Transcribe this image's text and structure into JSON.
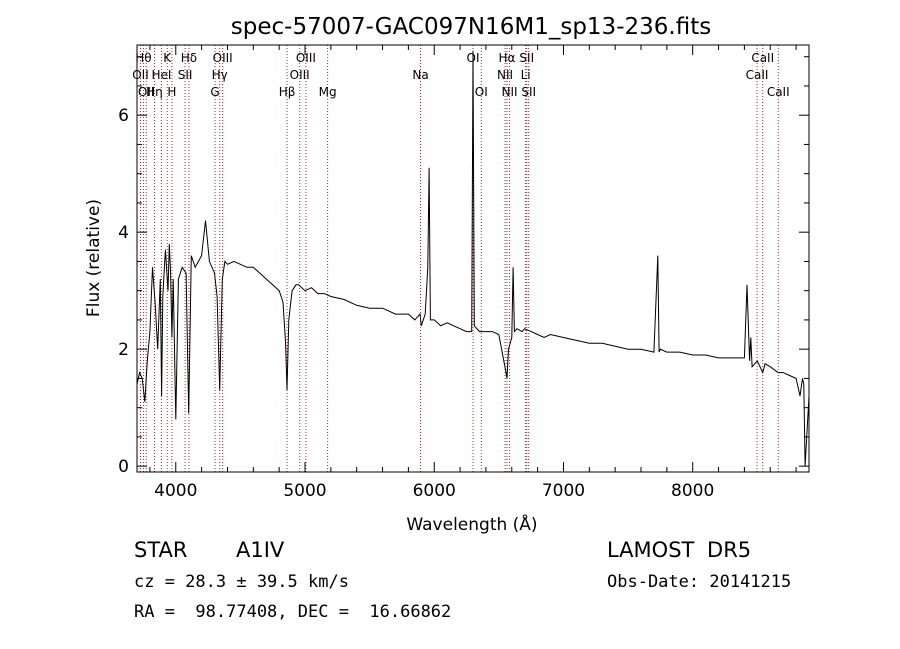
{
  "chart_data": {
    "type": "line",
    "title": "spec-57007-GAC097N16M1_sp13-236.fits",
    "xlabel": "Wavelength (Å)",
    "ylabel": "Flux (relative)",
    "xlim": [
      3700,
      8900
    ],
    "ylim": [
      -0.1,
      7.2
    ],
    "xticks": [
      4000,
      5000,
      6000,
      7000,
      8000
    ],
    "yticks": [
      0,
      2,
      4,
      6
    ],
    "grid": false,
    "legend": "none",
    "series": [
      {
        "x": [
          3700,
          3720,
          3740,
          3760,
          3780,
          3800,
          3820,
          3840,
          3860,
          3880,
          3890,
          3900,
          3920,
          3940,
          3950,
          3960,
          3970,
          3980,
          4000,
          4020,
          4050,
          4080,
          4100,
          4120,
          4150,
          4200,
          4230,
          4260,
          4300,
          4320,
          4340,
          4360,
          4380,
          4400,
          4450,
          4500,
          4550,
          4600,
          4650,
          4700,
          4750,
          4800,
          4830,
          4850,
          4861,
          4875,
          4900,
          4930,
          4950,
          5000,
          5050,
          5100,
          5150,
          5200,
          5300,
          5400,
          5500,
          5600,
          5700,
          5800,
          5850,
          5890,
          5900,
          5930,
          5950,
          5960,
          5970,
          6000,
          6050,
          6100,
          6150,
          6200,
          6250,
          6290,
          6300,
          6310,
          6350,
          6400,
          6450,
          6500,
          6530,
          6555,
          6563,
          6575,
          6600,
          6610,
          6620,
          6640,
          6680,
          6700,
          6750,
          6800,
          6850,
          6900,
          7000,
          7100,
          7200,
          7300,
          7400,
          7500,
          7600,
          7700,
          7730,
          7740,
          7750,
          7800,
          7900,
          8000,
          8100,
          8200,
          8300,
          8400,
          8420,
          8440,
          8450,
          8460,
          8500,
          8542,
          8560,
          8600,
          8662,
          8700,
          8750,
          8800,
          8830,
          8850,
          8860,
          8870,
          8900
        ],
        "y": [
          1.4,
          1.6,
          1.5,
          1.1,
          1.8,
          2.3,
          3.4,
          2.8,
          2.0,
          3.2,
          1.2,
          2.9,
          3.7,
          3.0,
          3.8,
          3.3,
          2.2,
          3.2,
          0.8,
          3.2,
          3.4,
          3.3,
          0.9,
          3.6,
          3.4,
          3.6,
          4.2,
          3.5,
          3.3,
          2.9,
          1.3,
          3.2,
          3.5,
          3.45,
          3.5,
          3.45,
          3.4,
          3.4,
          3.3,
          3.2,
          3.1,
          3.0,
          2.8,
          2.1,
          1.3,
          2.5,
          3.0,
          3.1,
          3.1,
          3.0,
          3.05,
          2.95,
          2.95,
          2.9,
          2.85,
          2.75,
          2.7,
          2.7,
          2.6,
          2.6,
          2.5,
          2.6,
          2.4,
          2.6,
          3.4,
          5.1,
          2.5,
          2.5,
          2.4,
          2.45,
          2.4,
          2.35,
          2.3,
          2.3,
          7.1,
          2.4,
          2.3,
          2.3,
          2.3,
          2.25,
          1.9,
          1.6,
          1.5,
          2.0,
          2.2,
          3.4,
          2.3,
          2.35,
          2.3,
          2.35,
          2.3,
          2.25,
          2.2,
          2.25,
          2.2,
          2.15,
          2.1,
          2.1,
          2.05,
          2.0,
          2.0,
          1.95,
          3.6,
          1.95,
          2.0,
          1.95,
          1.95,
          1.9,
          1.9,
          1.85,
          1.85,
          1.85,
          3.1,
          1.8,
          2.2,
          1.7,
          1.8,
          1.6,
          1.75,
          1.7,
          1.6,
          1.6,
          1.55,
          1.5,
          1.2,
          1.5,
          1.4,
          0.0,
          1.2
        ]
      }
    ],
    "lines": [
      {
        "x": 3727,
        "label": "OII",
        "row": 2
      },
      {
        "x": 3750,
        "label": "Hθ",
        "row": 1
      },
      {
        "x": 3771,
        "label": "OII",
        "row": 3
      },
      {
        "x": 3835,
        "label": "Hη",
        "row": 3
      },
      {
        "x": 3889,
        "label": "HeI",
        "row": 2
      },
      {
        "x": 3934,
        "label": "K",
        "row": 1
      },
      {
        "x": 3970,
        "label": "H",
        "row": 3
      },
      {
        "x": 4072,
        "label": "SII",
        "row": 2
      },
      {
        "x": 4102,
        "label": "Hδ",
        "row": 1
      },
      {
        "x": 4304,
        "label": "G",
        "row": 3
      },
      {
        "x": 4340,
        "label": "Hγ",
        "row": 2
      },
      {
        "x": 4363,
        "label": "OIII",
        "row": 1
      },
      {
        "x": 4861,
        "label": "Hβ",
        "row": 3
      },
      {
        "x": 4959,
        "label": "OIII",
        "row": 2
      },
      {
        "x": 5007,
        "label": "OIII",
        "row": 1
      },
      {
        "x": 5175,
        "label": "Mg",
        "row": 3
      },
      {
        "x": 5894,
        "label": "Na",
        "row": 2
      },
      {
        "x": 6300,
        "label": "OI",
        "row": 1
      },
      {
        "x": 6364,
        "label": "OI",
        "row": 3
      },
      {
        "x": 6548,
        "label": "NII",
        "row": 2
      },
      {
        "x": 6563,
        "label": "Hα",
        "row": 1
      },
      {
        "x": 6583,
        "label": "NII",
        "row": 3
      },
      {
        "x": 6707,
        "label": "Li",
        "row": 2
      },
      {
        "x": 6716,
        "label": "SII",
        "row": 1
      },
      {
        "x": 6731,
        "label": "SII",
        "row": 3
      },
      {
        "x": 8498,
        "label": "CaII",
        "row": 2
      },
      {
        "x": 8542,
        "label": "CaII",
        "row": 1
      },
      {
        "x": 8662,
        "label": "CaII",
        "row": 3
      }
    ]
  },
  "info": {
    "class": "STAR",
    "subclass": "A1IV",
    "survey": "LAMOST DR5",
    "cz": "cz = 28.3 ± 39.5 km/s",
    "obs_date": "Obs-Date: 20141215",
    "coords": "RA =  98.77408, DEC =  16.66862"
  },
  "colors": {
    "spectrum": "#000000",
    "line_markers": "#b22222"
  }
}
